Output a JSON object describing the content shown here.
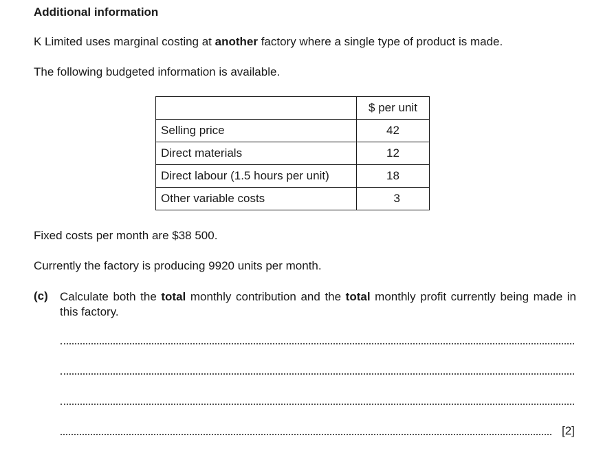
{
  "heading": "Additional information",
  "intro": {
    "before": "K Limited uses marginal costing at ",
    "bold": "another",
    "after": " factory where a single type of product is made."
  },
  "budget_intro": "The following budgeted information is available.",
  "table": {
    "header": "$ per unit",
    "rows": [
      {
        "label": "Selling price",
        "value": "42"
      },
      {
        "label": "Direct materials",
        "value": "12"
      },
      {
        "label": "Direct labour (1.5 hours per unit)",
        "value": "18"
      },
      {
        "label": "Other variable costs",
        "value": "3"
      }
    ]
  },
  "fixed_costs": "Fixed costs per month are $38 500.",
  "production": "Currently the factory is producing 9920 units per month.",
  "question": {
    "label": "(c)",
    "part1": "Calculate both the ",
    "bold1": "total",
    "part2": " monthly contribution and the ",
    "bold2": "total",
    "part3": " monthly profit currently being made in this factory."
  },
  "marks": "[2]"
}
